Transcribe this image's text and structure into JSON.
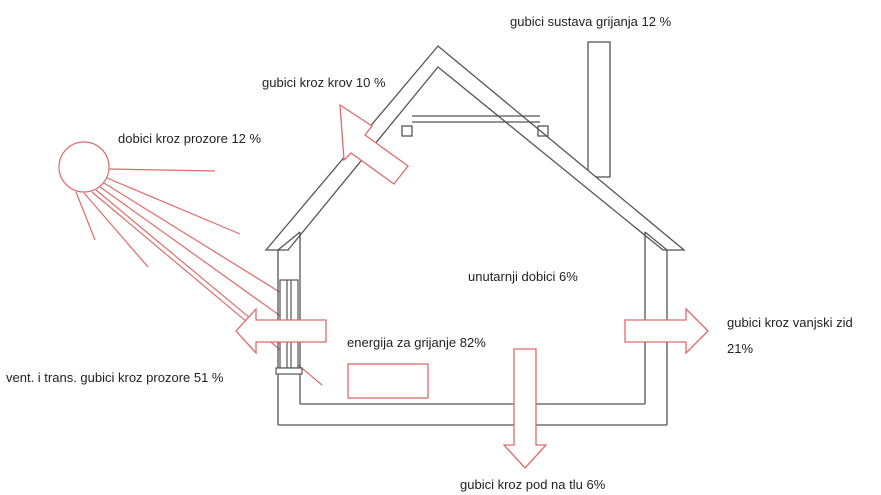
{
  "labels": {
    "heating_system_losses": "gubici sustava grijanja 12 %",
    "roof_losses": "gubici kroz krov 10 %",
    "window_gains": "dobici kroz prozore 12 %",
    "internal_gains": "unutarnji dobici 6%",
    "heating_energy": "energija za grijanje 82%",
    "wall_losses_line1": "gubici kroz vanjski zid",
    "wall_losses_line2": "21%",
    "window_losses": "vent. i trans. gubici kroz prozore 51 %",
    "floor_losses": "gubici kroz pod na tlu 6%"
  },
  "colors": {
    "outline": "#555555",
    "energy": "#e06a6a",
    "text": "#222222"
  }
}
